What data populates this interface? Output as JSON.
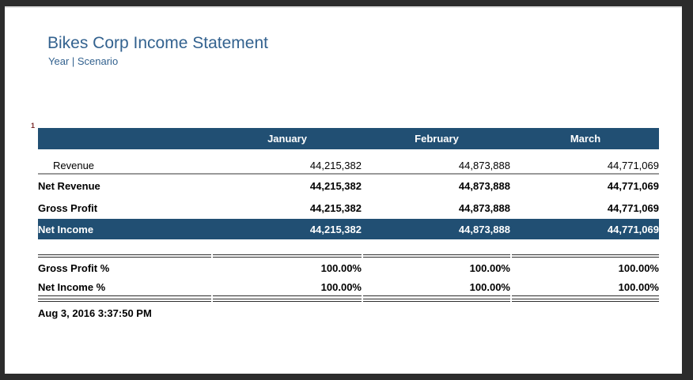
{
  "page": {
    "title": "Bikes Corp Income Statement",
    "subtitle": "Year | Scenario",
    "row_marker": "1",
    "timestamp": "Aug 3, 2016 3:37:50 PM"
  },
  "colors": {
    "header_bg": "#214f73",
    "net_income_row_bg": "#214f73",
    "title_text": "#33628f",
    "revenue_underline": "#999999",
    "rule_lines": "#2b2b2b",
    "window_frame": "#2c2c2c"
  },
  "table": {
    "columns": [
      "January",
      "February",
      "March"
    ],
    "rows": {
      "revenue": {
        "label": "Revenue",
        "values": [
          "44,215,382",
          "44,873,888",
          "44,771,069"
        ]
      },
      "net_revenue": {
        "label": "Net Revenue",
        "values": [
          "44,215,382",
          "44,873,888",
          "44,771,069"
        ]
      },
      "gross_profit": {
        "label": "Gross Profit",
        "values": [
          "44,215,382",
          "44,873,888",
          "44,771,069"
        ]
      },
      "net_income": {
        "label": "Net Income",
        "values": [
          "44,215,382",
          "44,873,888",
          "44,771,069"
        ]
      },
      "gross_profit_pct": {
        "label": "Gross Profit %",
        "values": [
          "100.00%",
          "100.00%",
          "100.00%"
        ]
      },
      "net_income_pct": {
        "label": "Net Income %",
        "values": [
          "100.00%",
          "100.00%",
          "100.00%"
        ]
      }
    }
  }
}
